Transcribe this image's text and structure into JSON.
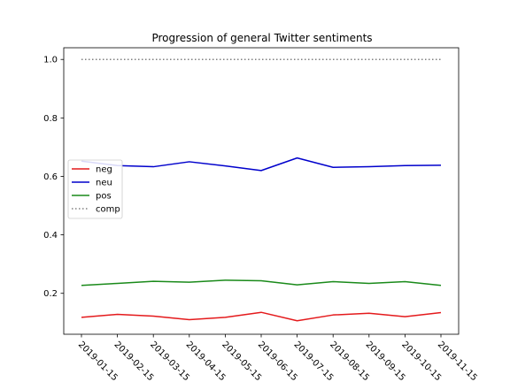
{
  "chart_data": {
    "type": "line",
    "title": "Progression of general Twitter sentiments",
    "xlabel": "",
    "ylabel": "",
    "categories": [
      "2019-01-15",
      "2019-02-15",
      "2019-03-15",
      "2019-04-15",
      "2019-05-15",
      "2019-06-15",
      "2019-07-15",
      "2019-08-15",
      "2019-09-15",
      "2019-10-15",
      "2019-11-15"
    ],
    "ylim": [
      0.06,
      1.04
    ],
    "yticks": [
      "0.2",
      "0.4",
      "0.6",
      "0.8",
      "1.0"
    ],
    "ytick_values": [
      0.2,
      0.4,
      0.6,
      0.8,
      1.0
    ],
    "grid": false,
    "legend_position": "center-left",
    "series": [
      {
        "name": "neg",
        "color": "#e41a1c",
        "style": "solid",
        "values": [
          0.118,
          0.128,
          0.122,
          0.11,
          0.118,
          0.135,
          0.106,
          0.126,
          0.132,
          0.12,
          0.134
        ]
      },
      {
        "name": "neu",
        "color": "#0000cc",
        "style": "solid",
        "values": [
          0.652,
          0.637,
          0.633,
          0.65,
          0.636,
          0.62,
          0.663,
          0.631,
          0.633,
          0.637,
          0.638
        ]
      },
      {
        "name": "pos",
        "color": "#1a8a1a",
        "style": "solid",
        "values": [
          0.227,
          0.234,
          0.241,
          0.238,
          0.245,
          0.243,
          0.229,
          0.24,
          0.234,
          0.24,
          0.227
        ]
      },
      {
        "name": "comp",
        "color": "#808080",
        "style": "dotted",
        "values": [
          1.0,
          1.0,
          1.0,
          1.0,
          1.0,
          1.0,
          1.0,
          1.0,
          1.0,
          1.0,
          1.0
        ]
      }
    ]
  }
}
